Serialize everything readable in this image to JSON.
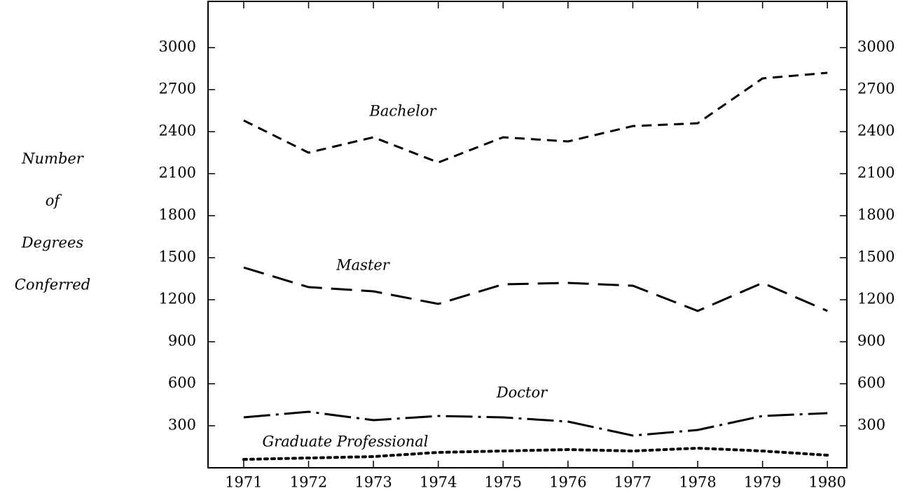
{
  "chart_data": {
    "type": "line",
    "ylabel": [
      "Number",
      "of",
      "Degrees",
      "Conferred"
    ],
    "x": [
      1971,
      1972,
      1973,
      1974,
      1975,
      1976,
      1977,
      1978,
      1979,
      1980
    ],
    "xlim": [
      1970.45,
      1980.3
    ],
    "xticks": [
      1971,
      1972,
      1973,
      1974,
      1975,
      1976,
      1977,
      1978,
      1979,
      1980
    ],
    "ylim": [
      0,
      3330
    ],
    "yticks": [
      300,
      600,
      900,
      1200,
      1500,
      1800,
      2100,
      2400,
      2700,
      3000
    ],
    "series": [
      {
        "name": "Bachelor",
        "color": "#000000",
        "dash": "14,9",
        "values": [
          2480,
          2250,
          2360,
          2180,
          2360,
          2330,
          2440,
          2460,
          2780,
          2820
        ]
      },
      {
        "name": "Master",
        "color": "#000000",
        "dash": "30,13",
        "values": [
          1430,
          1290,
          1260,
          1170,
          1310,
          1320,
          1300,
          1120,
          1320,
          1120
        ]
      },
      {
        "name": "Doctor",
        "color": "#000000",
        "dash": "38,8,4,8",
        "values": [
          360,
          400,
          340,
          370,
          360,
          330,
          230,
          270,
          370,
          390
        ]
      },
      {
        "name": "Graduate Professional",
        "color": "#000000",
        "dash": "4,6",
        "values": [
          60,
          70,
          80,
          110,
          120,
          130,
          120,
          140,
          120,
          90
        ]
      }
    ]
  }
}
